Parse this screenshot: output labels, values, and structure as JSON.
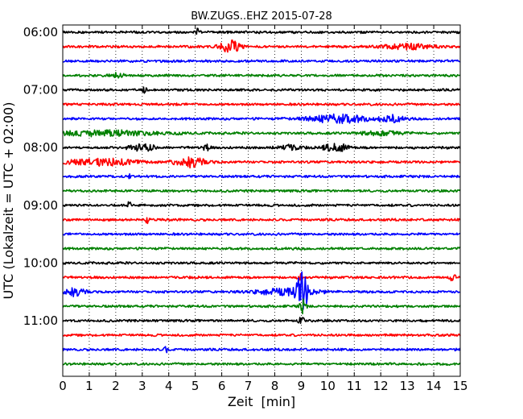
{
  "chart_data": {
    "type": "line",
    "title": "BW.ZUGS..EHZ 2015-07-28",
    "xlabel": "Zeit  [min]",
    "ylabel": "UTC (Lokalzeit = UTC + 02:00)",
    "xlim": [
      0,
      15
    ],
    "x_ticks": [
      "0",
      "1",
      "2",
      "3",
      "4",
      "5",
      "6",
      "7",
      "8",
      "9",
      "10",
      "11",
      "12",
      "13",
      "14",
      "15"
    ],
    "y_ticks": [
      "06:00",
      "07:00",
      "08:00",
      "09:00",
      "10:00",
      "11:00"
    ],
    "start_hour": "06:00",
    "trace_interval_min": 15,
    "trace_count": 24,
    "grid": "vertical-dotted",
    "series_colors": [
      "#000000",
      "#ff0000",
      "#0000ff",
      "#008000"
    ],
    "events": [
      {
        "trace": 0,
        "x": 5.1,
        "amp": 0.5,
        "width": 0.05
      },
      {
        "trace": 1,
        "x": 6.3,
        "amp": 0.9,
        "width": 0.25
      },
      {
        "trace": 1,
        "x": 13.0,
        "amp": 0.35,
        "width": 0.6
      },
      {
        "trace": 3,
        "x": 2.1,
        "amp": 0.3,
        "width": 0.2
      },
      {
        "trace": 4,
        "x": 3.1,
        "amp": 0.5,
        "width": 0.05
      },
      {
        "trace": 6,
        "x": 10.4,
        "amp": 0.55,
        "width": 0.8
      },
      {
        "trace": 6,
        "x": 12.4,
        "amp": 0.45,
        "width": 0.3
      },
      {
        "trace": 7,
        "x": 1.5,
        "amp": 0.35,
        "width": 1.5
      },
      {
        "trace": 7,
        "x": 12.0,
        "amp": 0.3,
        "width": 0.5
      },
      {
        "trace": 8,
        "x": 3.0,
        "amp": 0.45,
        "width": 0.4
      },
      {
        "trace": 8,
        "x": 5.4,
        "amp": 0.4,
        "width": 0.1
      },
      {
        "trace": 8,
        "x": 8.5,
        "amp": 0.35,
        "width": 0.3
      },
      {
        "trace": 8,
        "x": 10.3,
        "amp": 0.6,
        "width": 0.3
      },
      {
        "trace": 9,
        "x": 4.8,
        "amp": 0.7,
        "width": 0.4
      },
      {
        "trace": 9,
        "x": 1.5,
        "amp": 0.4,
        "width": 1.0
      },
      {
        "trace": 10,
        "x": 2.5,
        "amp": 0.6,
        "width": 0.03
      },
      {
        "trace": 12,
        "x": 2.5,
        "amp": 0.7,
        "width": 0.04
      },
      {
        "trace": 13,
        "x": 3.2,
        "amp": 0.6,
        "width": 0.04
      },
      {
        "trace": 17,
        "x": 9.0,
        "amp": 0.7,
        "width": 0.05
      },
      {
        "trace": 17,
        "x": 14.7,
        "amp": 0.4,
        "width": 0.1
      },
      {
        "trace": 18,
        "x": 0.4,
        "amp": 0.55,
        "width": 0.3
      },
      {
        "trace": 18,
        "x": 8.5,
        "amp": 0.45,
        "width": 0.8
      },
      {
        "trace": 18,
        "x": 9.05,
        "amp": 2.3,
        "width": 0.15
      },
      {
        "trace": 19,
        "x": 9.05,
        "amp": 0.9,
        "width": 0.08
      },
      {
        "trace": 20,
        "x": 9.0,
        "amp": 0.5,
        "width": 0.08
      },
      {
        "trace": 22,
        "x": 3.9,
        "amp": 0.4,
        "width": 0.05
      }
    ]
  }
}
